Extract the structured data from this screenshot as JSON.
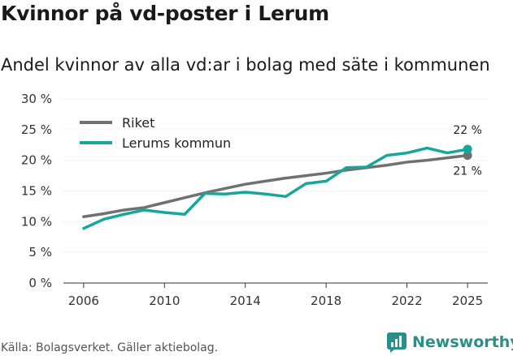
{
  "title": "Kvinnor på vd-poster i Lerum",
  "subtitle": "Andel kvinnor av alla vd:ar i bolag med säte i kommunen",
  "source": "Källa: Bolagsverket. Gäller aktiebolag.",
  "brand": "Newsworthy",
  "colors": {
    "riket": "#707070",
    "lerum": "#17a79a",
    "brand": "#2a8e89"
  },
  "chart_data": {
    "type": "line",
    "title": "Kvinnor på vd-poster i Lerum",
    "xlabel": "",
    "ylabel": "",
    "xlim": [
      2005,
      2026
    ],
    "ylim": [
      0,
      30
    ],
    "x_ticks": [
      2006,
      2010,
      2014,
      2018,
      2022,
      2025
    ],
    "x_tick_labels": [
      "2006",
      "2010",
      "2014",
      "2018",
      "2022",
      "2025"
    ],
    "y_ticks": [
      0,
      5,
      10,
      15,
      20,
      25,
      30
    ],
    "y_tick_labels": [
      "0 %",
      "5 %",
      "10 %",
      "15 %",
      "20 %",
      "25 %",
      "30 %"
    ],
    "legend_position": "top-left",
    "x": [
      2006,
      2007,
      2008,
      2009,
      2010,
      2011,
      2012,
      2013,
      2014,
      2015,
      2016,
      2017,
      2018,
      2019,
      2020,
      2021,
      2022,
      2023,
      2024,
      2025
    ],
    "series": [
      {
        "name": "Riket",
        "color": "#707070",
        "values": [
          10.8,
          11.3,
          11.9,
          12.3,
          13.1,
          13.9,
          14.7,
          15.4,
          16.1,
          16.6,
          17.1,
          17.5,
          17.9,
          18.4,
          18.8,
          19.2,
          19.7,
          20.0,
          20.4,
          20.8
        ],
        "end_label": "21 %"
      },
      {
        "name": "Lerums kommun",
        "color": "#17a79a",
        "values": [
          8.9,
          10.4,
          11.2,
          11.9,
          11.5,
          11.2,
          14.6,
          14.5,
          14.8,
          14.5,
          14.1,
          16.2,
          16.6,
          18.8,
          18.9,
          20.8,
          21.2,
          22.0,
          21.2,
          21.8
        ],
        "end_label": "22 %"
      }
    ]
  }
}
